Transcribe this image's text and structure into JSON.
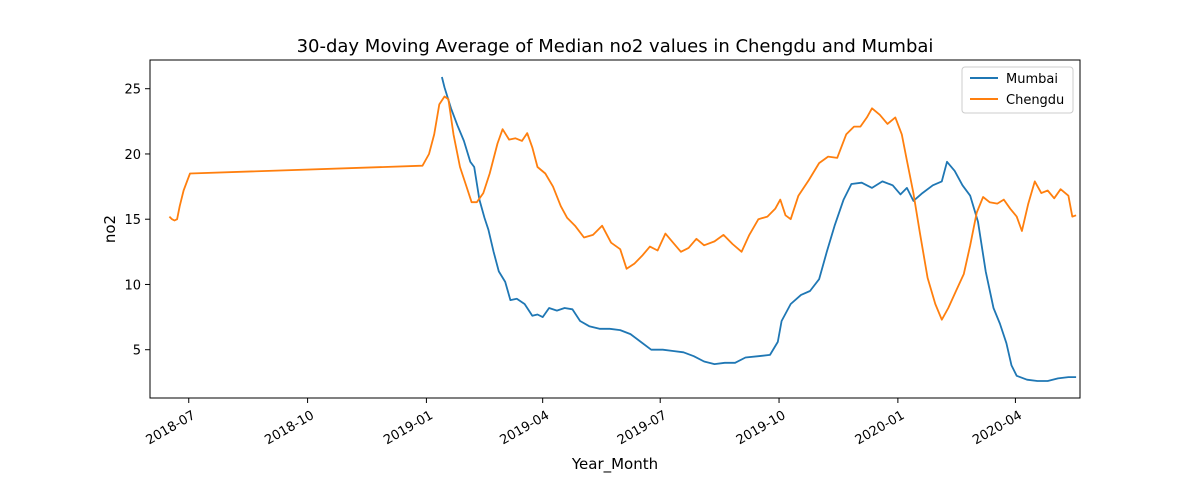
{
  "chart_data": {
    "type": "line",
    "title": "30-day Moving Average of Median no2 values in Chengdu and Mumbai",
    "xlabel": "Year_Month",
    "ylabel": "no2",
    "xlim": [
      "2018-06-01",
      "2020-05-21"
    ],
    "ylim": [
      1.3,
      27.2
    ],
    "x_ticks": [
      {
        "date": "2018-07-01",
        "label": "2018-07"
      },
      {
        "date": "2018-10-01",
        "label": "2018-10"
      },
      {
        "date": "2019-01-01",
        "label": "2019-01"
      },
      {
        "date": "2019-04-01",
        "label": "2019-04"
      },
      {
        "date": "2019-07-01",
        "label": "2019-07"
      },
      {
        "date": "2019-10-01",
        "label": "2019-10"
      },
      {
        "date": "2020-01-01",
        "label": "2020-01"
      },
      {
        "date": "2020-04-01",
        "label": "2020-04"
      }
    ],
    "y_ticks": [
      5,
      10,
      15,
      20,
      25
    ],
    "grid": false,
    "legend_position": "top-right",
    "series": [
      {
        "name": "Mumbai",
        "color": "#1f77b4",
        "points": [
          [
            "2019-01-13",
            25.9
          ],
          [
            "2019-01-15",
            25.1
          ],
          [
            "2019-01-20",
            23.5
          ],
          [
            "2019-01-25",
            22.2
          ],
          [
            "2019-01-30",
            21.0
          ],
          [
            "2019-02-04",
            19.4
          ],
          [
            "2019-02-07",
            19.0
          ],
          [
            "2019-02-11",
            16.5
          ],
          [
            "2019-02-15",
            15.1
          ],
          [
            "2019-02-18",
            14.2
          ],
          [
            "2019-02-22",
            12.5
          ],
          [
            "2019-02-26",
            11.0
          ],
          [
            "2019-03-03",
            10.2
          ],
          [
            "2019-03-07",
            8.8
          ],
          [
            "2019-03-12",
            8.9
          ],
          [
            "2019-03-18",
            8.5
          ],
          [
            "2019-03-24",
            7.6
          ],
          [
            "2019-03-28",
            7.7
          ],
          [
            "2019-04-01",
            7.5
          ],
          [
            "2019-04-06",
            8.2
          ],
          [
            "2019-04-12",
            8.0
          ],
          [
            "2019-04-18",
            8.2
          ],
          [
            "2019-04-24",
            8.1
          ],
          [
            "2019-04-30",
            7.2
          ],
          [
            "2019-05-07",
            6.8
          ],
          [
            "2019-05-15",
            6.6
          ],
          [
            "2019-05-23",
            6.6
          ],
          [
            "2019-05-31",
            6.5
          ],
          [
            "2019-06-08",
            6.2
          ],
          [
            "2019-06-16",
            5.6
          ],
          [
            "2019-06-24",
            5.0
          ],
          [
            "2019-07-03",
            5.0
          ],
          [
            "2019-07-11",
            4.9
          ],
          [
            "2019-07-19",
            4.8
          ],
          [
            "2019-07-27",
            4.5
          ],
          [
            "2019-08-04",
            4.1
          ],
          [
            "2019-08-12",
            3.9
          ],
          [
            "2019-08-20",
            4.0
          ],
          [
            "2019-08-28",
            4.0
          ],
          [
            "2019-09-05",
            4.4
          ],
          [
            "2019-09-15",
            4.5
          ],
          [
            "2019-09-24",
            4.6
          ],
          [
            "2019-09-30",
            5.6
          ],
          [
            "2019-10-03",
            7.2
          ],
          [
            "2019-10-10",
            8.5
          ],
          [
            "2019-10-18",
            9.2
          ],
          [
            "2019-10-25",
            9.5
          ],
          [
            "2019-11-01",
            10.4
          ],
          [
            "2019-11-07",
            12.5
          ],
          [
            "2019-11-13",
            14.5
          ],
          [
            "2019-11-20",
            16.5
          ],
          [
            "2019-11-26",
            17.7
          ],
          [
            "2019-12-04",
            17.8
          ],
          [
            "2019-12-12",
            17.4
          ],
          [
            "2019-12-20",
            17.9
          ],
          [
            "2019-12-28",
            17.6
          ],
          [
            "2020-01-03",
            16.9
          ],
          [
            "2020-01-08",
            17.4
          ],
          [
            "2020-01-13",
            16.4
          ],
          [
            "2020-01-20",
            17.0
          ],
          [
            "2020-01-28",
            17.6
          ],
          [
            "2020-02-04",
            17.9
          ],
          [
            "2020-02-08",
            19.4
          ],
          [
            "2020-02-14",
            18.7
          ],
          [
            "2020-02-20",
            17.6
          ],
          [
            "2020-02-26",
            16.8
          ],
          [
            "2020-03-03",
            14.8
          ],
          [
            "2020-03-09",
            11.0
          ],
          [
            "2020-03-15",
            8.2
          ],
          [
            "2020-03-20",
            7.0
          ],
          [
            "2020-03-25",
            5.5
          ],
          [
            "2020-03-29",
            3.8
          ],
          [
            "2020-04-02",
            3.0
          ],
          [
            "2020-04-10",
            2.7
          ],
          [
            "2020-04-18",
            2.6
          ],
          [
            "2020-04-26",
            2.6
          ],
          [
            "2020-05-04",
            2.8
          ],
          [
            "2020-05-12",
            2.9
          ],
          [
            "2020-05-18",
            2.9
          ]
        ]
      },
      {
        "name": "Chengdu",
        "color": "#ff7f0e",
        "points": [
          [
            "2018-06-16",
            15.2
          ],
          [
            "2018-06-18",
            15.0
          ],
          [
            "2018-06-20",
            14.9
          ],
          [
            "2018-06-22",
            15.0
          ],
          [
            "2018-06-24",
            16.0
          ],
          [
            "2018-06-27",
            17.2
          ],
          [
            "2018-06-30",
            18.0
          ],
          [
            "2018-07-02",
            18.5
          ],
          [
            "2018-12-29",
            19.1
          ],
          [
            "2019-01-03",
            20.0
          ],
          [
            "2019-01-07",
            21.5
          ],
          [
            "2019-01-11",
            23.8
          ],
          [
            "2019-01-15",
            24.4
          ],
          [
            "2019-01-18",
            24.2
          ],
          [
            "2019-01-22",
            21.5
          ],
          [
            "2019-01-27",
            19.0
          ],
          [
            "2019-02-01",
            17.5
          ],
          [
            "2019-02-05",
            16.3
          ],
          [
            "2019-02-09",
            16.3
          ],
          [
            "2019-02-14",
            17.0
          ],
          [
            "2019-02-19",
            18.5
          ],
          [
            "2019-02-25",
            20.8
          ],
          [
            "2019-03-01",
            21.9
          ],
          [
            "2019-03-06",
            21.1
          ],
          [
            "2019-03-11",
            21.2
          ],
          [
            "2019-03-16",
            21.0
          ],
          [
            "2019-03-20",
            21.6
          ],
          [
            "2019-03-24",
            20.5
          ],
          [
            "2019-03-28",
            19.0
          ],
          [
            "2019-04-03",
            18.5
          ],
          [
            "2019-04-09",
            17.5
          ],
          [
            "2019-04-15",
            16.0
          ],
          [
            "2019-04-20",
            15.1
          ],
          [
            "2019-04-26",
            14.5
          ],
          [
            "2019-05-03",
            13.6
          ],
          [
            "2019-05-10",
            13.8
          ],
          [
            "2019-05-17",
            14.5
          ],
          [
            "2019-05-24",
            13.2
          ],
          [
            "2019-05-31",
            12.7
          ],
          [
            "2019-06-05",
            11.2
          ],
          [
            "2019-06-11",
            11.6
          ],
          [
            "2019-06-17",
            12.2
          ],
          [
            "2019-06-23",
            12.9
          ],
          [
            "2019-06-29",
            12.6
          ],
          [
            "2019-07-05",
            13.9
          ],
          [
            "2019-07-11",
            13.2
          ],
          [
            "2019-07-17",
            12.5
          ],
          [
            "2019-07-23",
            12.8
          ],
          [
            "2019-07-29",
            13.5
          ],
          [
            "2019-08-04",
            13.0
          ],
          [
            "2019-08-12",
            13.3
          ],
          [
            "2019-08-19",
            13.8
          ],
          [
            "2019-08-26",
            13.1
          ],
          [
            "2019-09-02",
            12.5
          ],
          [
            "2019-09-08",
            13.8
          ],
          [
            "2019-09-15",
            15.0
          ],
          [
            "2019-09-22",
            15.2
          ],
          [
            "2019-09-28",
            15.8
          ],
          [
            "2019-10-02",
            16.5
          ],
          [
            "2019-10-06",
            15.3
          ],
          [
            "2019-10-10",
            15.0
          ],
          [
            "2019-10-16",
            16.8
          ],
          [
            "2019-10-24",
            18.0
          ],
          [
            "2019-11-01",
            19.3
          ],
          [
            "2019-11-08",
            19.8
          ],
          [
            "2019-11-15",
            19.7
          ],
          [
            "2019-11-22",
            21.5
          ],
          [
            "2019-11-28",
            22.1
          ],
          [
            "2019-12-03",
            22.1
          ],
          [
            "2019-12-08",
            22.8
          ],
          [
            "2019-12-12",
            23.5
          ],
          [
            "2019-12-18",
            23.0
          ],
          [
            "2019-12-24",
            22.3
          ],
          [
            "2019-12-30",
            22.8
          ],
          [
            "2020-01-04",
            21.5
          ],
          [
            "2020-01-08",
            19.5
          ],
          [
            "2020-01-13",
            17.0
          ],
          [
            "2020-01-18",
            14.0
          ],
          [
            "2020-01-24",
            10.5
          ],
          [
            "2020-01-30",
            8.5
          ],
          [
            "2020-02-04",
            7.3
          ],
          [
            "2020-02-09",
            8.2
          ],
          [
            "2020-02-15",
            9.5
          ],
          [
            "2020-02-21",
            10.8
          ],
          [
            "2020-02-26",
            13.0
          ],
          [
            "2020-03-02",
            15.5
          ],
          [
            "2020-03-07",
            16.7
          ],
          [
            "2020-03-12",
            16.3
          ],
          [
            "2020-03-18",
            16.2
          ],
          [
            "2020-03-23",
            16.5
          ],
          [
            "2020-03-28",
            15.8
          ],
          [
            "2020-04-02",
            15.2
          ],
          [
            "2020-04-06",
            14.1
          ],
          [
            "2020-04-11",
            16.2
          ],
          [
            "2020-04-16",
            17.9
          ],
          [
            "2020-04-21",
            17.0
          ],
          [
            "2020-04-26",
            17.2
          ],
          [
            "2020-05-01",
            16.6
          ],
          [
            "2020-05-06",
            17.3
          ],
          [
            "2020-05-12",
            16.8
          ],
          [
            "2020-05-15",
            15.2
          ],
          [
            "2020-05-18",
            15.3
          ]
        ]
      }
    ]
  }
}
